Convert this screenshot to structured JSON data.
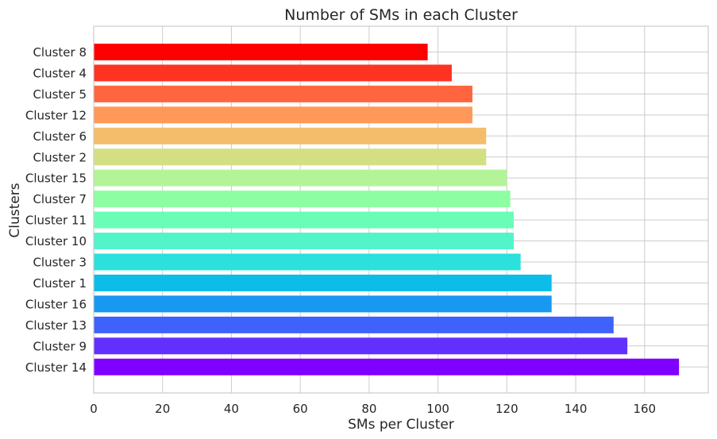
{
  "chart_data": {
    "type": "bar",
    "orientation": "horizontal",
    "title": "Number of SMs in each Cluster",
    "xlabel": "SMs per Cluster",
    "ylabel": "Clusters",
    "xlim": [
      0,
      178.5
    ],
    "xticks": [
      0,
      20,
      40,
      60,
      80,
      100,
      120,
      140,
      160
    ],
    "grid": true,
    "categories": [
      "Cluster 8",
      "Cluster 4",
      "Cluster 5",
      "Cluster 12",
      "Cluster 6",
      "Cluster 2",
      "Cluster 15",
      "Cluster 7",
      "Cluster 11",
      "Cluster 10",
      "Cluster 3",
      "Cluster 1",
      "Cluster 16",
      "Cluster 13",
      "Cluster 9",
      "Cluster 14"
    ],
    "values": [
      97,
      104,
      110,
      110,
      114,
      114,
      120,
      121,
      122,
      122,
      124,
      133,
      133,
      151,
      155,
      170
    ],
    "colors": [
      "#ff0000",
      "#ff3322",
      "#ff6640",
      "#ff9858",
      "#f4bd6b",
      "#d4df84",
      "#b3f499",
      "#8efea2",
      "#6afdb6",
      "#51f5c8",
      "#2ce0db",
      "#0bbde8",
      "#1898f0",
      "#3e62fa",
      "#6230fe",
      "#7f00ff"
    ],
    "colormap": "rainbow"
  }
}
